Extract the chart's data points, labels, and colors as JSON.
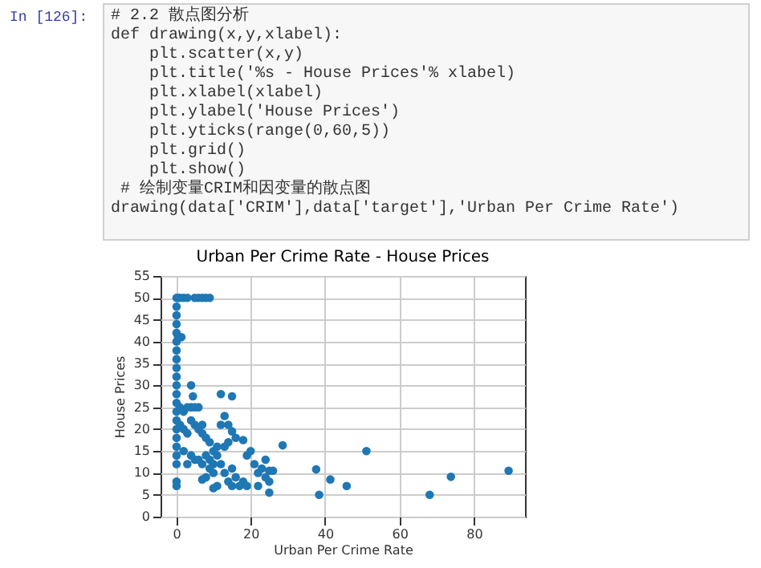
{
  "chart_data": {
    "type": "scatter",
    "title": "Urban Per Crime Rate - House Prices",
    "xlabel": "Urban Per Crime Rate",
    "ylabel": "House Prices",
    "annotations": [
      "In [126]:",
      "# 2.2 散点图分析",
      "def drawing(x,y,xlabel):",
      "    plt.scatter(x,y)",
      "    plt.title('%s - House Prices'% xlabel)",
      "    plt.xlabel(xlabel)",
      "    plt.ylabel('House Prices')",
      "    plt.yticks(range(0,60,5))",
      "    plt.grid()",
      "    plt.show()",
      " # 绘制变量CRIM和因变量的散点图",
      "drawing(data['CRIM'],data['target'],'Urban Per Crime Rate')"
    ],
    "xlim": [
      -4.2,
      93.7
    ],
    "xticks": [
      0,
      20,
      40,
      60,
      80
    ],
    "ylim": [
      0,
      55
    ],
    "yticks": [
      0,
      5,
      10,
      15,
      20,
      25,
      30,
      35,
      40,
      45,
      50,
      55
    ],
    "grid": true,
    "marker": "circle",
    "series": [
      {
        "color": "#1f77b4",
        "x": [
          0.1,
          0.1,
          0.1,
          0.1,
          0.1,
          0.1,
          0.1,
          0.1,
          0.1,
          0.1,
          0.1,
          0.1,
          0.1,
          0.1,
          0.1,
          0.1,
          0.1,
          0.1,
          0.1,
          0.1,
          0.1,
          0.1,
          0.5,
          1,
          2,
          3,
          5,
          6,
          7,
          8,
          9,
          0.5,
          1.4,
          1,
          2,
          3,
          4,
          5,
          6,
          1,
          2,
          3,
          4,
          5,
          6,
          7,
          8,
          9,
          2,
          4,
          6,
          8,
          10,
          3,
          5,
          7,
          9,
          10,
          11,
          11,
          4,
          4.5,
          7,
          10,
          9,
          8,
          7,
          10,
          11,
          12,
          15,
          13,
          14,
          12,
          15,
          14,
          13,
          16,
          18,
          12,
          13,
          15,
          16,
          14,
          15,
          17,
          18,
          19,
          20,
          19,
          21,
          22,
          23,
          24,
          25,
          26,
          25,
          24,
          22,
          25,
          28.6,
          37.6,
          38.4,
          41.4,
          45.8,
          51.1,
          68.1,
          73.8,
          89.3
        ],
        "values": [
          50,
          48,
          46,
          44,
          42,
          40,
          38,
          36,
          34,
          32,
          30,
          28,
          26,
          24,
          22,
          20,
          18,
          16,
          14,
          12,
          8,
          7,
          50,
          50,
          50,
          50,
          50,
          50,
          50,
          50,
          50,
          41,
          41,
          25,
          24,
          25,
          25,
          25,
          25,
          21,
          20,
          19,
          22,
          21,
          20,
          19,
          18,
          17,
          15,
          14,
          13,
          14,
          15,
          12,
          13,
          12,
          13,
          12,
          14,
          16,
          30,
          27.5,
          21,
          10,
          11,
          9,
          8.5,
          6.5,
          7,
          28,
          27.5,
          23,
          21,
          21,
          19.5,
          17,
          16,
          18,
          17.5,
          12,
          10,
          11,
          9,
          8,
          7,
          7,
          8,
          7,
          15,
          14,
          12,
          10,
          11,
          13,
          10.5,
          10.5,
          8,
          9,
          7,
          5.5,
          16.3,
          10.8,
          5,
          8.5,
          7,
          15,
          5,
          9.1,
          10.5
        ]
      }
    ]
  }
}
